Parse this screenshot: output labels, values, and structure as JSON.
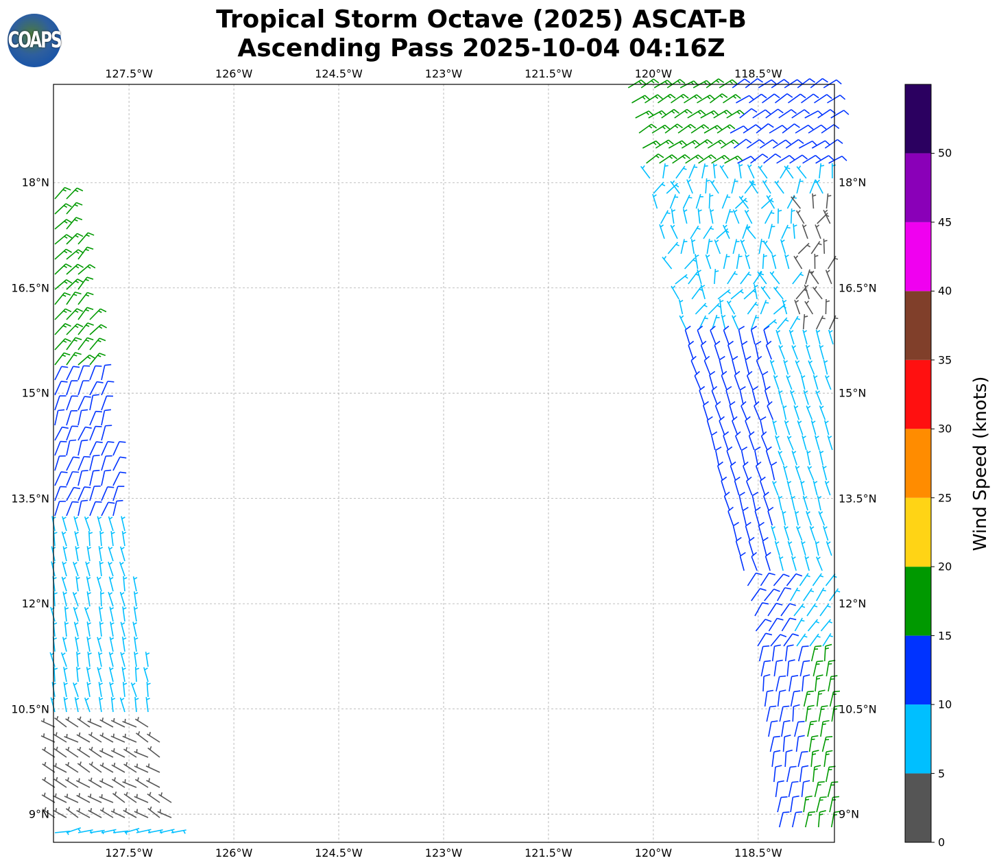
{
  "title_line1": "Tropical Storm Octave (2025) ASCAT-B",
  "title_line2": "Ascending Pass 2025-10-04 04:16Z",
  "logo_text": "COAPS",
  "map": {
    "lon_ticks": [
      "127.5°W",
      "126°W",
      "124.5°W",
      "123°W",
      "121.5°W",
      "120°W",
      "118.5°W"
    ],
    "lon_values": [
      -127.5,
      -126,
      -124.5,
      -123,
      -121.5,
      -120,
      -118.5
    ],
    "lat_ticks": [
      "18°N",
      "16.5°N",
      "15°N",
      "13.5°N",
      "12°N",
      "10.5°N",
      "9°N"
    ],
    "lat_values": [
      18,
      16.5,
      15,
      13.5,
      12,
      10.5,
      9
    ],
    "lon_range": [
      -128.58,
      -117.41
    ],
    "lat_range": [
      8.6,
      19.4
    ]
  },
  "colorbar": {
    "label": "Wind Speed (knots)",
    "ticks": [
      "0",
      "5",
      "10",
      "15",
      "20",
      "25",
      "30",
      "35",
      "40",
      "45",
      "50"
    ],
    "range": [
      0,
      55
    ],
    "colors": [
      "#555555",
      "#00bfff",
      "#0033ff",
      "#009900",
      "#ffd415",
      "#ff8c00",
      "#ff1010",
      "#803f2a",
      "#f000f0",
      "#8a00b8",
      "#2b0060"
    ]
  }
}
